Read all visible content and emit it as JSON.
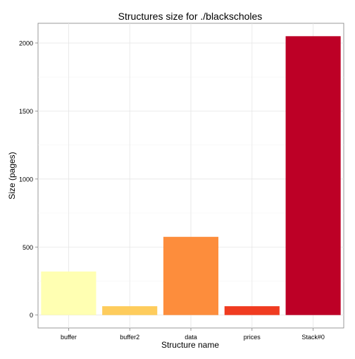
{
  "chart_data": {
    "type": "bar",
    "title": "Structures size for ./blackscholes",
    "xlabel": "Structure name",
    "ylabel": "Size (pages)",
    "categories": [
      "buffer",
      "buffer2",
      "data",
      "prices",
      "Stack#0"
    ],
    "values": [
      320,
      65,
      575,
      65,
      2050
    ],
    "colors": [
      "#FFFFB2",
      "#FECC5C",
      "#FD8D3C",
      "#F03B20",
      "#BD0026"
    ],
    "ylim": [
      -95,
      2145
    ],
    "yticks": [
      0,
      500,
      1000,
      1500,
      2000
    ],
    "grid": true,
    "legend": "none"
  }
}
